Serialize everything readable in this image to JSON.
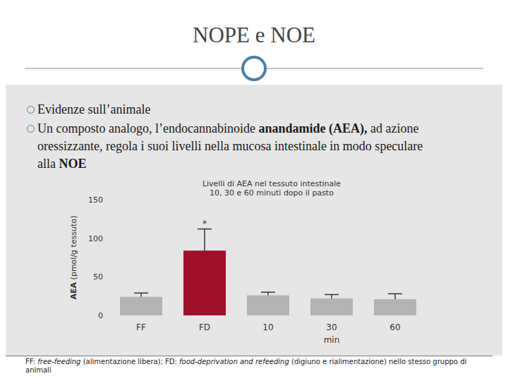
{
  "slide": {
    "title": "NOPE e NOE",
    "bullets": [
      {
        "lines": [
          [
            {
              "text": "Evidenze sull’animale",
              "style": "normal"
            }
          ]
        ]
      },
      {
        "lines": [
          [
            {
              "text": "Un composto analogo, l’endocannabinoide ",
              "style": "normal"
            },
            {
              "text": "anandamide (AEA),",
              "style": "bold"
            },
            {
              "text": " ad azione",
              "style": "normal"
            }
          ],
          [
            {
              "text": "oressizzante, regola i suoi livelli nella mucosa intestinale in modo speculare",
              "style": "normal"
            }
          ],
          [
            {
              "text": "alla ",
              "style": "normal"
            },
            {
              "text": "NOE",
              "style": "bold"
            }
          ]
        ]
      }
    ],
    "footnote": [
      {
        "text": "FF: ",
        "style": "normal"
      },
      {
        "text": "free-feeding",
        "style": "italic"
      },
      {
        "text": " (alimentazione libera); FD: ",
        "style": "normal"
      },
      {
        "text": "food-deprivation and refeeding",
        "style": "italic"
      },
      {
        "text": " (digiuno e rialimentazione) nello stesso gruppo di animali",
        "style": "normal"
      }
    ]
  },
  "chart_data": {
    "type": "bar",
    "title": [
      "Livelli di AEA nel tessuto intestinale",
      "10, 30 e 60 minuti dopo il pasto"
    ],
    "ylabel": "AEA (pmol/g tessuto)",
    "categories": [
      "FF",
      "FD",
      "10",
      "30",
      "60"
    ],
    "values": [
      24,
      84,
      26,
      22,
      21
    ],
    "errors": [
      5,
      28,
      4,
      5,
      7
    ],
    "colors": [
      "#b3b3b3",
      "#a0102a",
      "#b3b3b3",
      "#b3b3b3",
      "#b3b3b3"
    ],
    "ylim": [
      0,
      150
    ],
    "yticks": [
      0,
      50,
      100,
      150
    ],
    "grid": false,
    "annotations": [
      {
        "text": "*",
        "category_index": 1,
        "position": "above"
      },
      {
        "text": "min",
        "category_index": 3,
        "position": "below"
      }
    ]
  }
}
